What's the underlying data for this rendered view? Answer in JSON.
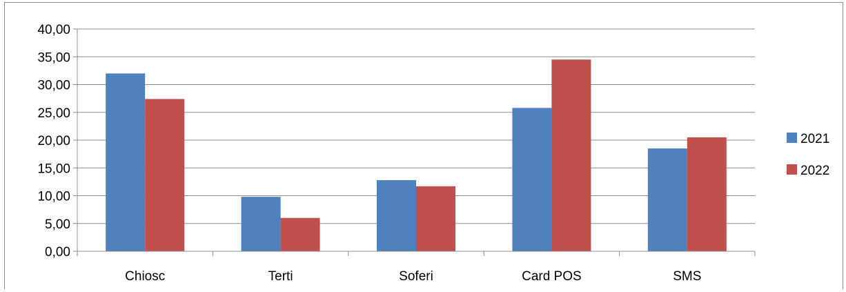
{
  "chart_data": {
    "type": "bar",
    "categories": [
      "Chiosc",
      "Terti",
      "Soferi",
      "Card POS",
      "SMS"
    ],
    "series": [
      {
        "name": "2021",
        "color": "#4f81bd",
        "values": [
          32.0,
          9.8,
          12.8,
          25.8,
          18.5
        ]
      },
      {
        "name": "2022",
        "color": "#c0504d",
        "values": [
          27.4,
          6.0,
          11.7,
          34.5,
          20.5
        ]
      }
    ],
    "y_ticks": [
      "0,00",
      "5,00",
      "10,00",
      "15,00",
      "20,00",
      "25,00",
      "30,00",
      "35,00",
      "40,00"
    ],
    "ylim": [
      0,
      40
    ],
    "grid": true,
    "legend_position": "right"
  }
}
